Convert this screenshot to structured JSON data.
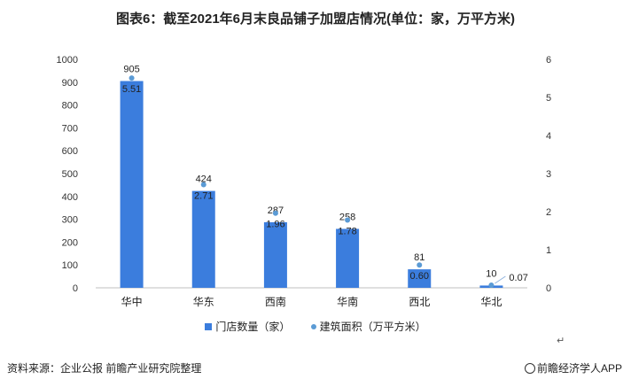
{
  "chart_data": {
    "type": "bar",
    "title": "图表6：截至2021年6月末良品铺子加盟店情况(单位：家，万平方米)",
    "categories": [
      "华中",
      "华东",
      "西南",
      "华南",
      "西北",
      "华北"
    ],
    "series": [
      {
        "name": "门店数量（家）",
        "type": "bar",
        "axis": "left",
        "values": [
          905,
          424,
          287,
          258,
          81,
          10
        ],
        "labels": [
          "905",
          "424",
          "287",
          "258",
          "81",
          "10"
        ]
      },
      {
        "name": "建筑面积（万平方米）",
        "type": "scatter",
        "axis": "right",
        "values": [
          5.51,
          2.71,
          1.96,
          1.78,
          0.6,
          0.07
        ],
        "labels": [
          "5.51",
          "2.71",
          "1.96",
          "1.78",
          "0.60",
          "0.07"
        ]
      }
    ],
    "y_left": {
      "range": [
        0,
        1000
      ],
      "ticks": [
        "0",
        "100",
        "200",
        "300",
        "400",
        "500",
        "600",
        "700",
        "800",
        "900",
        "1000"
      ]
    },
    "y_right": {
      "range": [
        0,
        6
      ],
      "ticks": [
        "0",
        "1",
        "2",
        "3",
        "4",
        "5",
        "6"
      ]
    },
    "grid": false,
    "legend": "bottom",
    "colors": {
      "bar": "#3b7ddd",
      "dot": "#5b9bd5"
    }
  },
  "footer": {
    "source": "资料来源：企业公报 前瞻产业研究院整理",
    "brand": "前瞻经济学人APP"
  },
  "return_mark": "↵"
}
